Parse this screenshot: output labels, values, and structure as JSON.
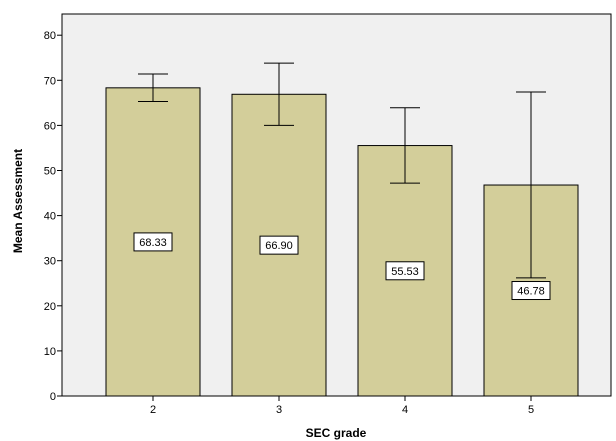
{
  "chart_data": {
    "type": "bar",
    "title": "",
    "xlabel": "SEC grade",
    "ylabel": "Mean Assessment",
    "categories": [
      "2",
      "3",
      "4",
      "5"
    ],
    "values": [
      68.33,
      66.9,
      55.53,
      46.78
    ],
    "data_labels": [
      "68.33",
      "66.90",
      "55.53",
      "46.78"
    ],
    "error_bars": [
      {
        "low": 65.3,
        "high": 71.4
      },
      {
        "low": 60.0,
        "high": 73.8
      },
      {
        "low": 47.2,
        "high": 63.9
      },
      {
        "low": 26.2,
        "high": 67.4
      }
    ],
    "ylim": [
      0,
      84
    ],
    "yticks": [
      0,
      10,
      20,
      30,
      40,
      50,
      60,
      70,
      80
    ],
    "grid": false,
    "legend": "none",
    "colors": {
      "bar_fill": "#d3ce9a",
      "bar_stroke": "#000000",
      "plot_background": "#f0f0f0",
      "frame": "#000000",
      "error_bar": "#000000"
    }
  }
}
